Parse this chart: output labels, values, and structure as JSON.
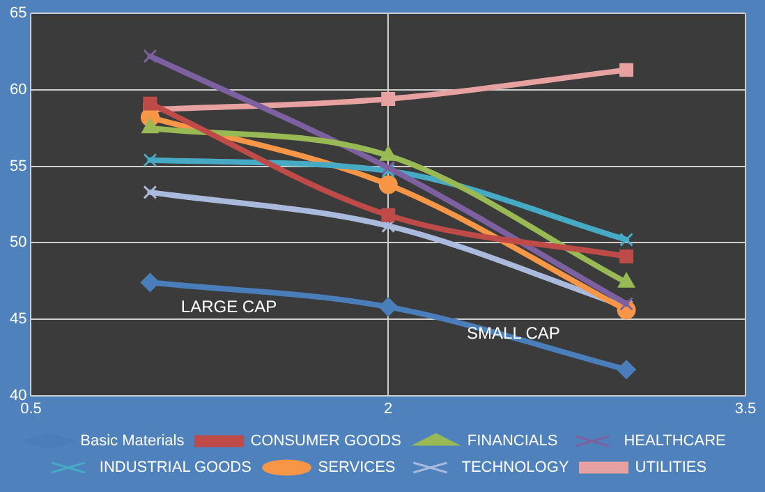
{
  "chart_data": {
    "type": "line",
    "x": [
      1,
      2,
      3
    ],
    "xlim": [
      0.5,
      3.5
    ],
    "xticks": [
      0.5,
      2,
      3.5
    ],
    "ylim": [
      40,
      65
    ],
    "yticks": [
      40,
      45,
      50,
      55,
      60,
      65
    ],
    "grid": true,
    "legend": "bottom",
    "annotations": [
      "LARGE CAP",
      "SMALL CAP"
    ],
    "series": [
      {
        "name": "Basic Materials",
        "color": "#4a7ebb",
        "marker": "diamond",
        "values": [
          47.4,
          45.8,
          41.7
        ]
      },
      {
        "name": "CONSUMER GOODS",
        "color": "#be4b48",
        "marker": "square",
        "values": [
          59.1,
          51.8,
          49.1
        ]
      },
      {
        "name": "FINANCIALS",
        "color": "#98b954",
        "marker": "triangle",
        "values": [
          57.5,
          55.7,
          47.4
        ]
      },
      {
        "name": "HEALTHCARE",
        "color": "#7d60a0",
        "marker": "cross",
        "values": [
          62.2,
          54.9,
          46.0
        ]
      },
      {
        "name": "INDUSTRIAL GOODS",
        "color": "#46aac5",
        "marker": "cross",
        "values": [
          55.4,
          54.7,
          50.2
        ]
      },
      {
        "name": "SERVICES",
        "color": "#f79646",
        "marker": "circle",
        "values": [
          58.2,
          53.8,
          45.6
        ]
      },
      {
        "name": "TECHNOLOGY",
        "color": "#aabadc",
        "marker": "cross",
        "values": [
          53.3,
          51.1,
          45.8
        ]
      },
      {
        "name": "UTILITIES",
        "color": "#e6a1a0",
        "marker": "square",
        "values": [
          58.7,
          59.4,
          61.3
        ]
      }
    ]
  }
}
